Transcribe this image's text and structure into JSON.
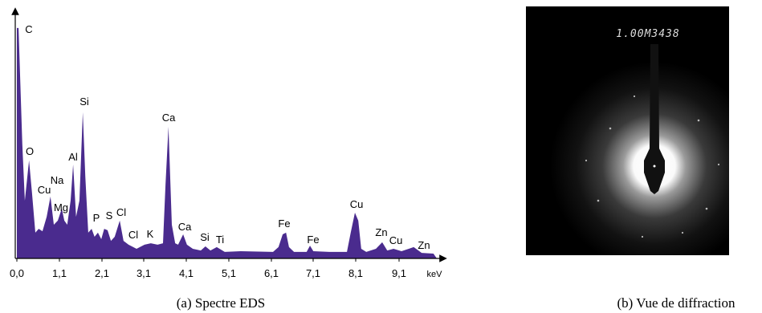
{
  "chart_data": {
    "type": "area",
    "color": "#4a2b8e",
    "x_label": "keV",
    "x": [
      0,
      0,
      0.04,
      0.13,
      0.19,
      0.29,
      0.36,
      0.44,
      0.52,
      0.61,
      0.71,
      0.8,
      0.88,
      0.975,
      1.07,
      1.13,
      1.2,
      1.28,
      1.34,
      1.41,
      1.49,
      1.57,
      1.63,
      1.7,
      1.78,
      1.85,
      1.93,
      2.01,
      2.08,
      2.16,
      2.24,
      2.33,
      2.45,
      2.54,
      2.66,
      2.85,
      3.04,
      3.19,
      3.35,
      3.48,
      3.54,
      3.61,
      3.69,
      3.77,
      3.84,
      3.96,
      4.05,
      4.19,
      4.38,
      4.49,
      4.61,
      4.76,
      4.95,
      5.33,
      6.1,
      6.23,
      6.33,
      6.41,
      6.48,
      6.6,
      6.9,
      6.98,
      7.06,
      7.44,
      7.86,
      7.95,
      8.05,
      8.13,
      8.2,
      8.32,
      8.55,
      8.7,
      8.82,
      8.97,
      9.16,
      9.45,
      9.64,
      9.92,
      10.0
    ],
    "values": [
      0,
      95.7,
      95.7,
      47.3,
      24,
      40.7,
      27.3,
      10.7,
      12.3,
      11.3,
      17.3,
      25.7,
      14,
      15.7,
      20.7,
      15.7,
      14,
      24,
      39,
      17.3,
      24,
      60.7,
      34,
      10.7,
      12.3,
      9,
      10.7,
      8,
      12.3,
      11.7,
      7.3,
      9,
      15.7,
      7.3,
      5.7,
      4,
      5.7,
      6.3,
      5.7,
      6.3,
      30.7,
      54.7,
      14,
      6.3,
      5.7,
      10,
      5.7,
      4,
      3.3,
      5,
      3.3,
      4.7,
      2.7,
      3,
      2.7,
      4.7,
      10,
      10.7,
      4.7,
      2.7,
      2.7,
      5.3,
      3,
      2.7,
      2.7,
      10.7,
      19,
      15.7,
      4,
      2.7,
      4,
      6.7,
      3.3,
      4,
      3,
      4.7,
      2.3,
      2,
      0
    ],
    "xlim": [
      0,
      10.2
    ],
    "ylim": [
      0,
      100
    ],
    "xticks": [
      {
        "value": 0.0,
        "label": "0,0"
      },
      {
        "value": 1.1,
        "label": "1,1"
      },
      {
        "value": 2.1,
        "label": "2,1"
      },
      {
        "value": 3.1,
        "label": "3,1"
      },
      {
        "value": 4.1,
        "label": "4,1"
      },
      {
        "value": 5.1,
        "label": "5,1"
      },
      {
        "value": 6.1,
        "label": "6,1"
      },
      {
        "value": 7.1,
        "label": "7,1"
      },
      {
        "value": 8.1,
        "label": "8,1"
      },
      {
        "value": 9.1,
        "label": "9,1"
      }
    ],
    "peak_labels": [
      "C",
      "O",
      "Cu",
      "Na",
      "Al",
      "Mg",
      "Si",
      "P",
      "S",
      "Cl",
      "Cl",
      "K",
      "Ca",
      "Ca",
      "Si",
      "Ti",
      "Fe",
      "Fe",
      "Cu",
      "Zn",
      "Cu",
      "Zn"
    ]
  },
  "image_b": {
    "overlay_text": "1.00M3438"
  },
  "captions": [
    "(a)  Spectre EDS",
    "(b)  Vue de diffraction"
  ]
}
